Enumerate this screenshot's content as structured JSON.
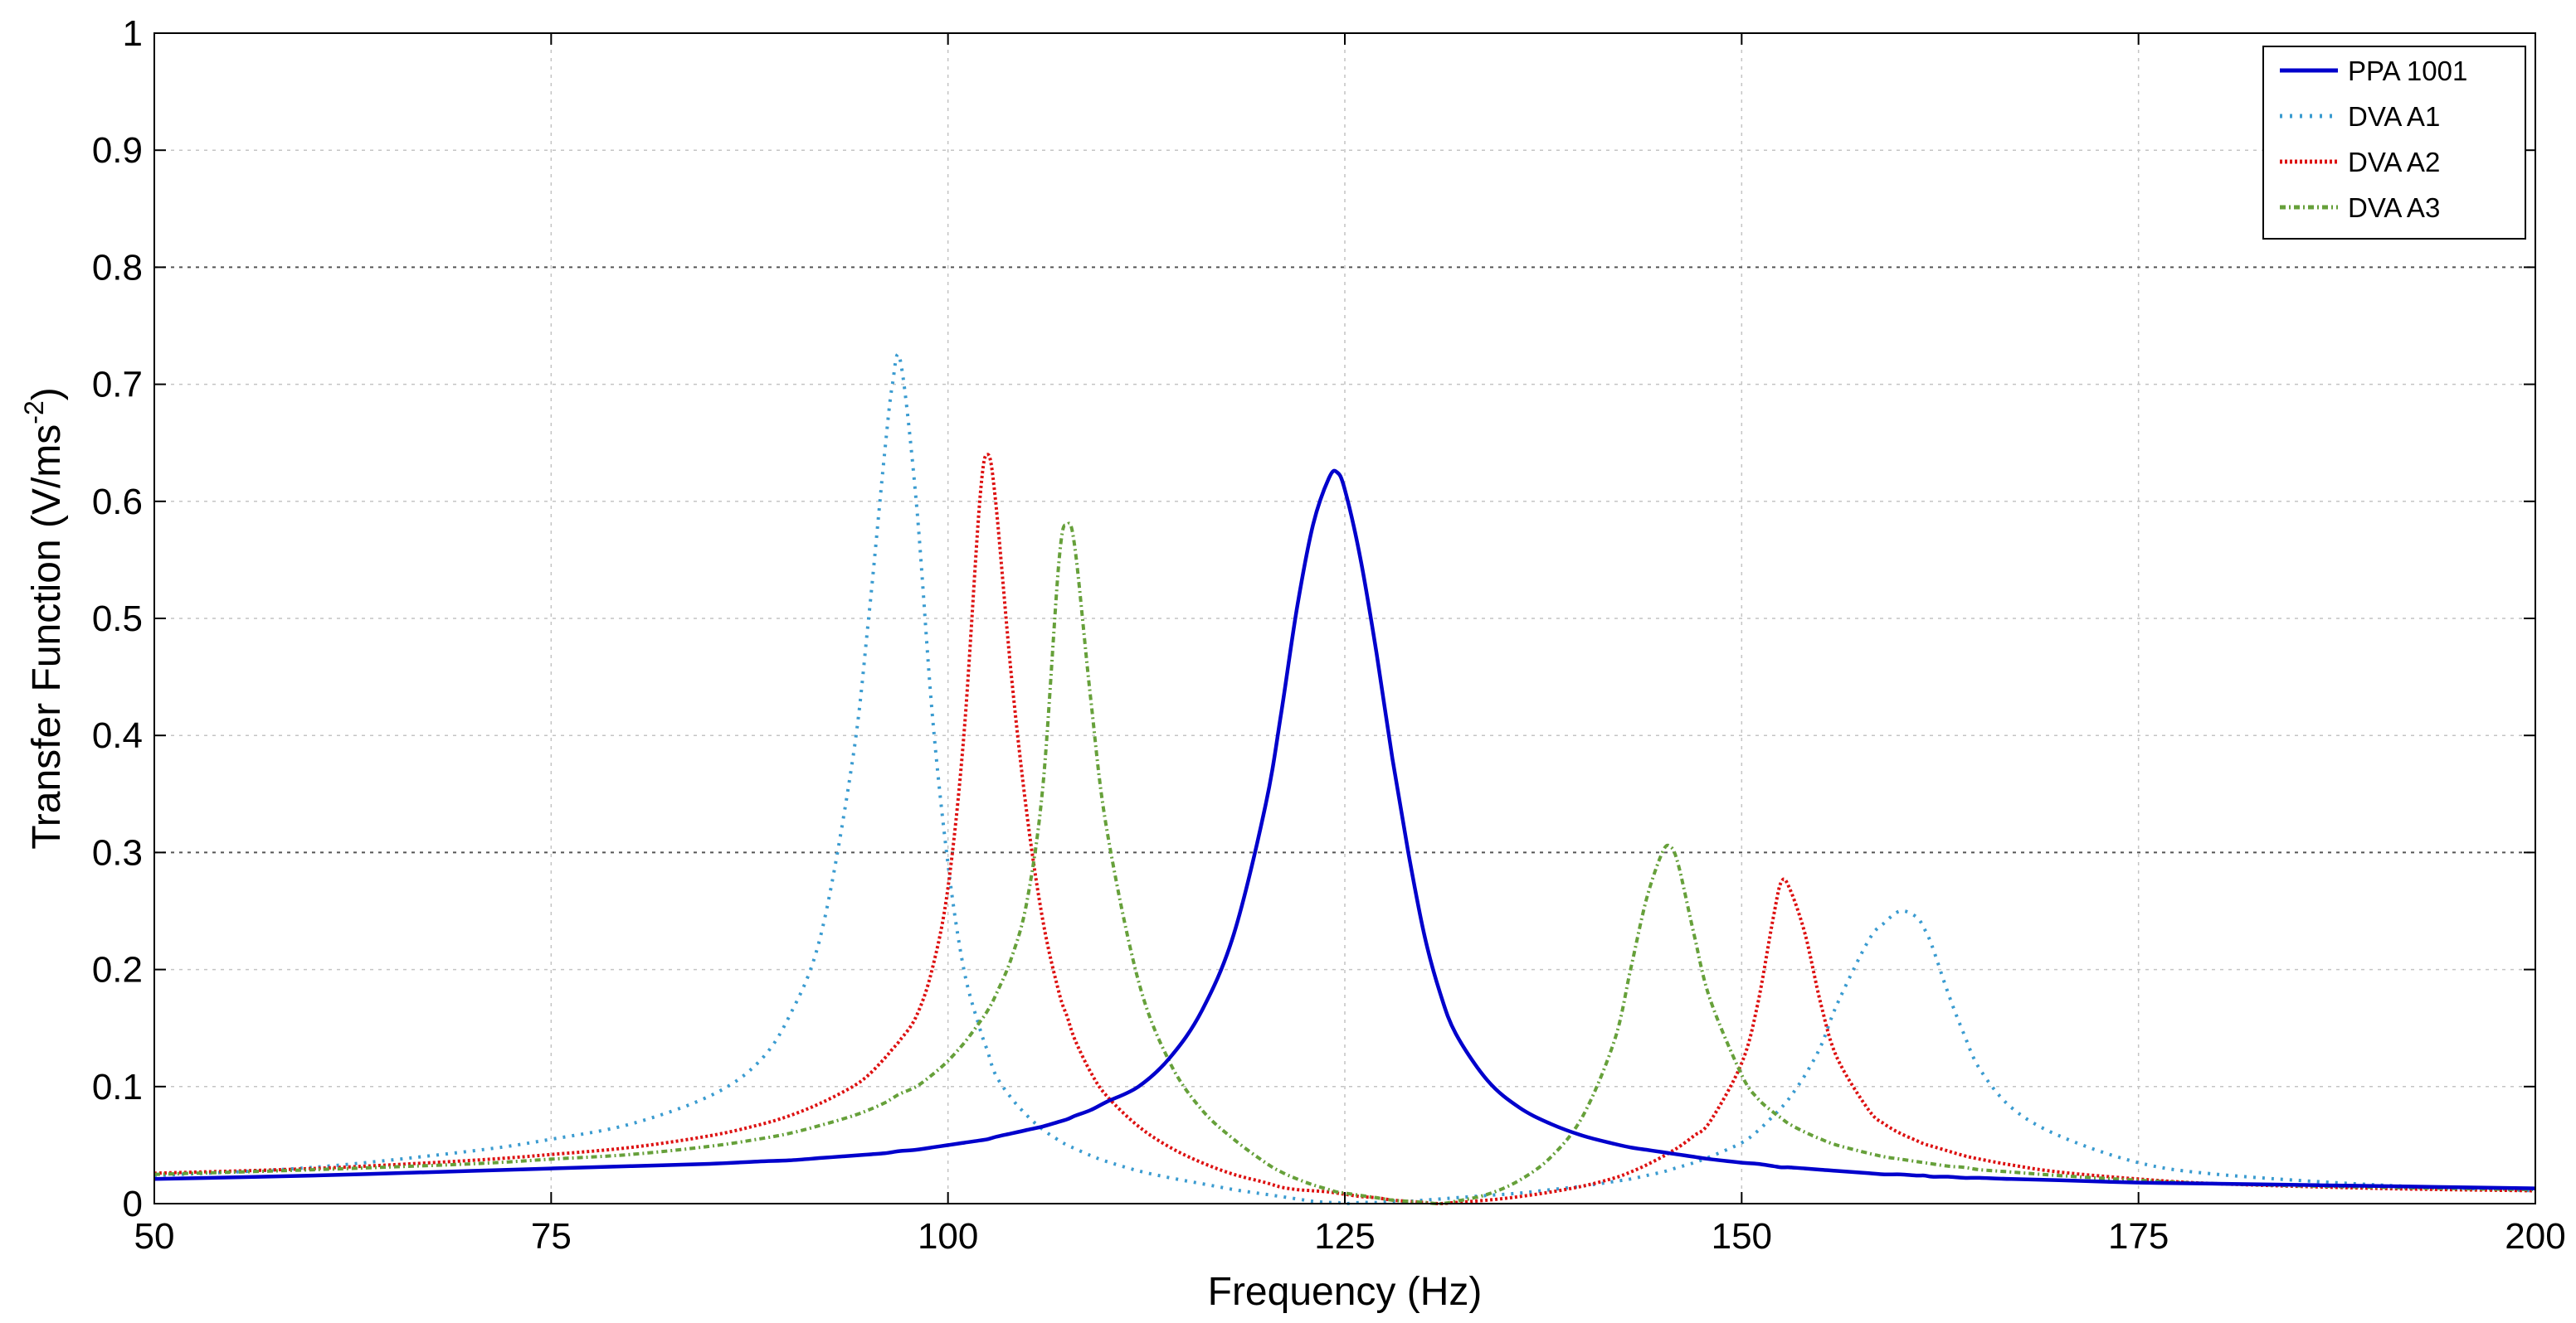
{
  "chart_data": {
    "type": "line",
    "xlabel": "Frequency (Hz)",
    "ylabel_prefix": "Transfer Function (V/ms",
    "ylabel_exponent": "-2",
    "ylabel_suffix": ")",
    "xlim": [
      50,
      200
    ],
    "ylim": [
      0,
      1
    ],
    "xticks": [
      50,
      75,
      100,
      125,
      150,
      175,
      200
    ],
    "xtick_labels": [
      "50",
      "75",
      "100",
      "125",
      "150",
      "175",
      "200"
    ],
    "yticks": [
      0,
      0.1,
      0.2,
      0.3,
      0.4,
      0.5,
      0.6,
      0.7,
      0.8,
      0.9,
      1
    ],
    "ytick_labels": [
      "0",
      "0.1",
      "0.2",
      "0.3",
      "0.4",
      "0.5",
      "0.6",
      "0.7",
      "0.8",
      "0.9",
      "1"
    ],
    "grid": true,
    "legend_position": "top-right",
    "x": [
      50,
      60,
      70,
      75,
      80,
      85,
      88,
      90,
      92,
      94,
      95,
      96,
      96.5,
      97,
      98,
      99,
      100,
      101,
      102,
      102.5,
      103,
      104,
      105,
      106,
      107,
      107.5,
      108,
      109,
      110,
      112,
      114,
      116,
      118,
      120,
      121,
      122,
      123,
      124,
      124.5,
      125,
      126,
      127,
      128,
      129,
      130,
      131,
      132,
      134,
      136,
      138,
      140,
      142,
      143,
      144,
      145,
      145.5,
      146,
      147,
      148,
      150,
      151,
      152,
      152.5,
      153,
      154,
      155,
      156,
      158,
      159,
      160,
      161,
      161.5,
      162,
      163,
      164,
      165,
      167,
      170,
      175,
      180,
      190,
      200
    ],
    "series": [
      {
        "name": "PPA 1001",
        "color": "#0000cc",
        "dash": "",
        "width": 4.5,
        "values": [
          0.021,
          0.024,
          0.028,
          0.03,
          0.032,
          0.034,
          0.036,
          0.037,
          0.039,
          0.041,
          0.042,
          0.043,
          0.044,
          0.045,
          0.046,
          0.048,
          0.05,
          0.052,
          0.054,
          0.055,
          0.057,
          0.06,
          0.063,
          0.066,
          0.07,
          0.072,
          0.075,
          0.08,
          0.087,
          0.1,
          0.125,
          0.165,
          0.23,
          0.34,
          0.42,
          0.51,
          0.58,
          0.62,
          0.625,
          0.61,
          0.55,
          0.47,
          0.38,
          0.3,
          0.23,
          0.18,
          0.145,
          0.105,
          0.082,
          0.068,
          0.058,
          0.051,
          0.048,
          0.046,
          0.044,
          0.043,
          0.042,
          0.04,
          0.038,
          0.035,
          0.034,
          0.032,
          0.031,
          0.031,
          0.03,
          0.029,
          0.028,
          0.026,
          0.025,
          0.025,
          0.024,
          0.024,
          0.023,
          0.023,
          0.022,
          0.022,
          0.021,
          0.02,
          0.018,
          0.017,
          0.015,
          0.013
        ]
      },
      {
        "name": "DVA A1",
        "color": "#3a9bd0",
        "dash": "3 8",
        "width": 4,
        "values": [
          0.024,
          0.031,
          0.045,
          0.055,
          0.068,
          0.092,
          0.12,
          0.16,
          0.23,
          0.38,
          0.5,
          0.64,
          0.7,
          0.72,
          0.6,
          0.42,
          0.29,
          0.2,
          0.15,
          0.13,
          0.11,
          0.09,
          0.075,
          0.063,
          0.054,
          0.05,
          0.047,
          0.041,
          0.036,
          0.028,
          0.022,
          0.017,
          0.012,
          0.008,
          0.006,
          0.004,
          0.002,
          0.001,
          0.001,
          0.0,
          0.001,
          0.001,
          0.002,
          0.002,
          0.003,
          0.004,
          0.005,
          0.007,
          0.009,
          0.012,
          0.015,
          0.019,
          0.021,
          0.024,
          0.027,
          0.029,
          0.031,
          0.035,
          0.04,
          0.052,
          0.062,
          0.075,
          0.082,
          0.09,
          0.11,
          0.135,
          0.17,
          0.225,
          0.24,
          0.25,
          0.245,
          0.235,
          0.22,
          0.18,
          0.145,
          0.115,
          0.082,
          0.058,
          0.035,
          0.025,
          0.016,
          0.011
        ]
      },
      {
        "name": "DVA A2",
        "color": "#dd1111",
        "dash": "3 3",
        "width": 4,
        "values": [
          0.026,
          0.03,
          0.037,
          0.042,
          0.048,
          0.058,
          0.067,
          0.075,
          0.086,
          0.1,
          0.11,
          0.124,
          0.132,
          0.14,
          0.16,
          0.2,
          0.27,
          0.4,
          0.6,
          0.64,
          0.6,
          0.45,
          0.33,
          0.24,
          0.18,
          0.16,
          0.14,
          0.112,
          0.092,
          0.066,
          0.048,
          0.035,
          0.025,
          0.018,
          0.014,
          0.012,
          0.011,
          0.01,
          0.009,
          0.008,
          0.006,
          0.005,
          0.003,
          0.002,
          0.001,
          0.0,
          0.001,
          0.003,
          0.006,
          0.01,
          0.015,
          0.022,
          0.027,
          0.033,
          0.04,
          0.044,
          0.048,
          0.058,
          0.07,
          0.12,
          0.17,
          0.245,
          0.275,
          0.27,
          0.23,
          0.17,
          0.125,
          0.08,
          0.068,
          0.06,
          0.054,
          0.051,
          0.049,
          0.045,
          0.041,
          0.038,
          0.033,
          0.027,
          0.021,
          0.017,
          0.013,
          0.011
        ]
      },
      {
        "name": "DVA A3",
        "color": "#66a03a",
        "dash": "7 4 2 4",
        "width": 4,
        "values": [
          0.025,
          0.029,
          0.034,
          0.038,
          0.042,
          0.049,
          0.055,
          0.06,
          0.067,
          0.075,
          0.08,
          0.086,
          0.09,
          0.094,
          0.1,
          0.11,
          0.122,
          0.137,
          0.155,
          0.165,
          0.178,
          0.21,
          0.26,
          0.36,
          0.55,
          0.58,
          0.56,
          0.43,
          0.32,
          0.19,
          0.12,
          0.08,
          0.055,
          0.035,
          0.027,
          0.021,
          0.016,
          0.012,
          0.01,
          0.009,
          0.007,
          0.005,
          0.003,
          0.002,
          0.001,
          0.0,
          0.002,
          0.008,
          0.02,
          0.04,
          0.075,
          0.14,
          0.2,
          0.26,
          0.3,
          0.305,
          0.29,
          0.23,
          0.175,
          0.11,
          0.09,
          0.078,
          0.073,
          0.068,
          0.061,
          0.055,
          0.05,
          0.043,
          0.04,
          0.038,
          0.036,
          0.035,
          0.034,
          0.032,
          0.031,
          0.029,
          0.027,
          0.024,
          0.02,
          0.017,
          0.014,
          0.012
        ]
      }
    ]
  }
}
